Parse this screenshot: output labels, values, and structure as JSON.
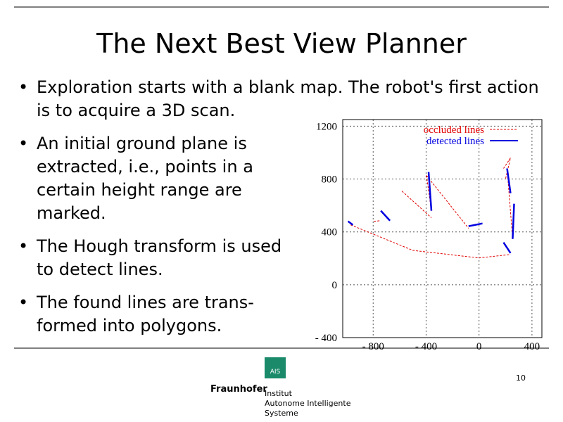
{
  "title": "The Next Best View Planner",
  "bullets": [
    "Exploration starts with a blank map. The robot's first action is to acquire a 3D scan.",
    "An initial ground plane is extracted, i.e., points in a certain height range are marked.",
    "The Hough transform is used to detect lines.",
    "The found lines are trans-formed into polygons."
  ],
  "page_number": "10",
  "footer": {
    "logo": "AIS",
    "brand": "Fraunhofer",
    "institute": [
      "Institut",
      "Autonome Intelligente",
      "Systeme"
    ]
  },
  "chart_data": {
    "type": "line",
    "xlim": [
      -1030,
      475
    ],
    "ylim": [
      -400,
      1250
    ],
    "xticks": [
      {
        "value": -800,
        "label": "- 800"
      },
      {
        "value": -400,
        "label": "- 400"
      },
      0,
      400
    ],
    "yticks": [
      {
        "value": -400,
        "label": "- 400"
      },
      0,
      400,
      800,
      1200
    ],
    "grid": true,
    "legend": "upper right",
    "series": [
      {
        "name": "occluded lines",
        "color": "#e00000",
        "dashed": true,
        "x": [
          -970,
          -500,
          0,
          238,
          null,
          -583,
          -360,
          null,
          -397,
          -360,
          null,
          -397,
          -79,
          null,
          -795,
          -742,
          null,
          185,
          238,
          200,
          null,
          254,
          212
        ],
        "values": [
          453,
          260,
          203,
          229,
          null,
          709,
          507,
          null,
          827,
          560,
          null,
          827,
          427,
          null,
          480,
          485,
          null,
          880,
          960,
          800,
          null,
          347,
          880
        ]
      },
      {
        "name": "detected lines",
        "color": "#0000e0",
        "dashed": false,
        "x": [
          -990,
          -953,
          null,
          -742,
          -673,
          null,
          -381,
          -360,
          null,
          -79,
          26,
          null,
          212,
          238,
          null,
          265,
          254,
          null,
          185,
          238
        ],
        "values": [
          480,
          453,
          null,
          560,
          485,
          null,
          853,
          560,
          null,
          443,
          464,
          null,
          880,
          693,
          null,
          613,
          347,
          null,
          320,
          240
        ]
      }
    ]
  }
}
